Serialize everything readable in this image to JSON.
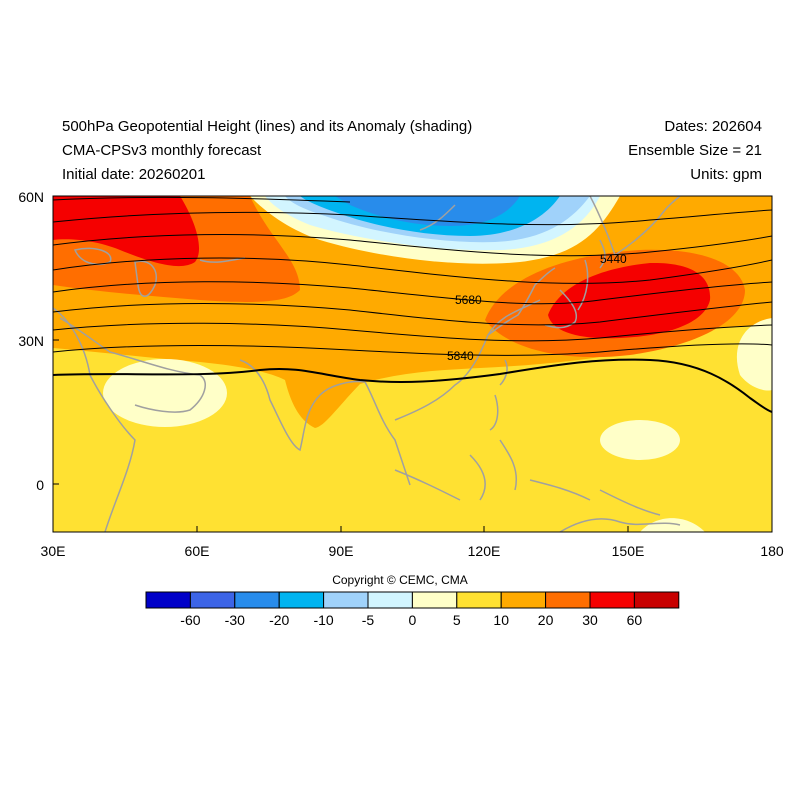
{
  "title": {
    "line1": "500hPa Geopotential Height (lines) and its Anomaly (shading)",
    "line2": "CMA-CPSv3 monthly forecast",
    "line3": "Initial date: 20260201"
  },
  "info": {
    "dates": "Dates: 202604",
    "ensemble": "Ensemble Size = 21",
    "units": "Units: gpm"
  },
  "axes": {
    "lat_ticks": [
      "60N",
      "30N",
      "0"
    ],
    "lon_ticks": [
      "30E",
      "60E",
      "90E",
      "120E",
      "150E",
      "180"
    ]
  },
  "contour_labels": [
    "5440",
    "5680",
    "5840"
  ],
  "copyright": "Copyright © CEMC, CMA",
  "colorbar": {
    "labels": [
      "-60",
      "-30",
      "-20",
      "-10",
      "-5",
      "0",
      "5",
      "10",
      "20",
      "30",
      "60"
    ],
    "colors": [
      "#0000c8",
      "#3c64e6",
      "#288ceb",
      "#00b4f0",
      "#a0d2fa",
      "#d2f5ff",
      "#ffffc8",
      "#ffe132",
      "#ffaa00",
      "#ff6e00",
      "#f50000",
      "#c80000"
    ]
  },
  "palette": {
    "background_anom": "#ffe132",
    "coast": "#a0a0a0",
    "contour": "#000000"
  }
}
